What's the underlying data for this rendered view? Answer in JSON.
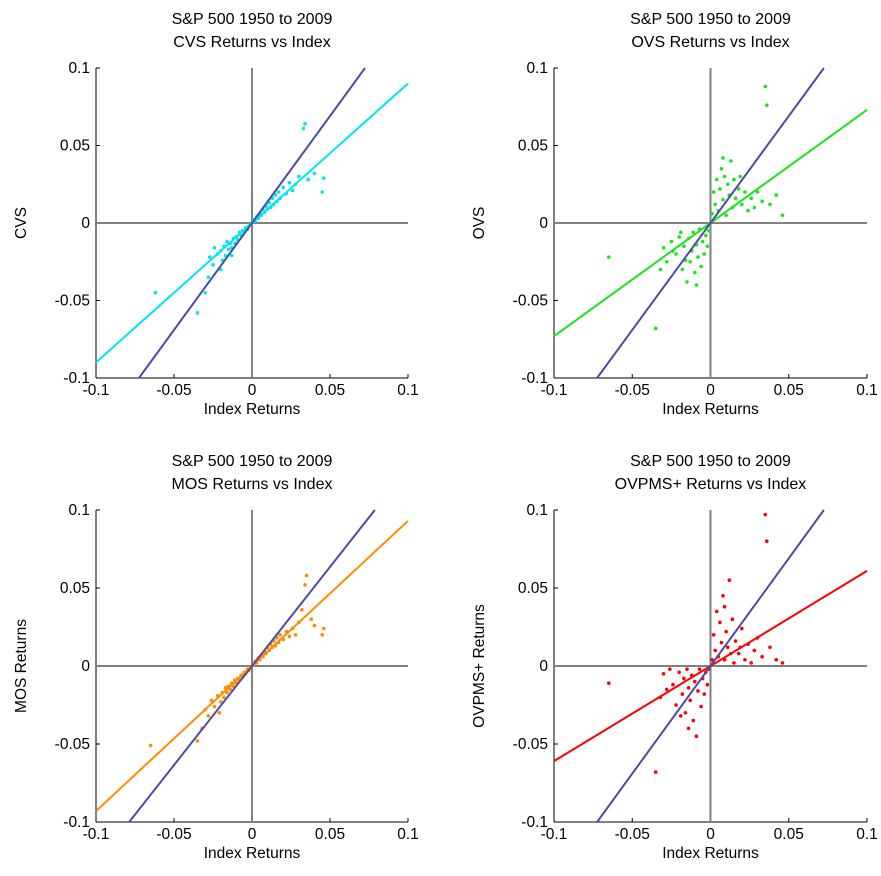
{
  "chart_data": [
    {
      "type": "scatter",
      "title_line1": "S&P 500 1950 to 2009",
      "title_line2": "CVS Returns vs Index",
      "xlabel": "Index Returns",
      "ylabel": "CVS",
      "xlim": [
        -0.1,
        0.1
      ],
      "ylim": [
        -0.1,
        0.1
      ],
      "xticks": [
        -0.1,
        -0.05,
        0,
        0.05,
        0.1
      ],
      "yticks": [
        -0.1,
        -0.05,
        0,
        0.05,
        0.1
      ],
      "xtick_labels": [
        "-0.1",
        "-0.05",
        "0",
        "0.05",
        "0.1"
      ],
      "ytick_labels": [
        "-0.1",
        "-0.05",
        "0",
        "0.05",
        "0.1"
      ],
      "color": "#00e5ee",
      "fit_slope": 0.9,
      "diag_color": "#4b4ba8",
      "diag_slope": 1.38,
      "grid": false,
      "points": [
        [
          -0.062,
          -0.045
        ],
        [
          -0.035,
          -0.058
        ],
        [
          -0.03,
          -0.045
        ],
        [
          -0.028,
          -0.035
        ],
        [
          -0.027,
          -0.022
        ],
        [
          -0.025,
          -0.027
        ],
        [
          -0.022,
          -0.02
        ],
        [
          -0.02,
          -0.018
        ],
        [
          -0.019,
          -0.024
        ],
        [
          -0.018,
          -0.015
        ],
        [
          -0.017,
          -0.021
        ],
        [
          -0.016,
          -0.012
        ],
        [
          -0.015,
          -0.017
        ],
        [
          -0.014,
          -0.013
        ],
        [
          -0.013,
          -0.016
        ],
        [
          -0.012,
          -0.01
        ],
        [
          -0.011,
          -0.013
        ],
        [
          -0.01,
          -0.009
        ],
        [
          -0.009,
          -0.011
        ],
        [
          -0.008,
          -0.006
        ],
        [
          -0.007,
          -0.008
        ],
        [
          -0.006,
          -0.005
        ],
        [
          -0.005,
          -0.006
        ],
        [
          -0.004,
          -0.003
        ],
        [
          -0.003,
          -0.004
        ],
        [
          -0.002,
          -0.002
        ],
        [
          -0.001,
          -0.001
        ],
        [
          0.001,
          0.002
        ],
        [
          0.002,
          0.001
        ],
        [
          0.003,
          0.004
        ],
        [
          0.004,
          0.003
        ],
        [
          0.005,
          0.006
        ],
        [
          0.006,
          0.005
        ],
        [
          0.007,
          0.009
        ],
        [
          0.008,
          0.007
        ],
        [
          0.009,
          0.011
        ],
        [
          0.01,
          0.009
        ],
        [
          0.011,
          0.013
        ],
        [
          0.012,
          0.01
        ],
        [
          0.013,
          0.016
        ],
        [
          0.014,
          0.012
        ],
        [
          0.015,
          0.018
        ],
        [
          0.016,
          0.014
        ],
        [
          0.017,
          0.02
        ],
        [
          0.018,
          0.016
        ],
        [
          0.02,
          0.023
        ],
        [
          0.022,
          0.019
        ],
        [
          0.024,
          0.026
        ],
        [
          0.026,
          0.021
        ],
        [
          0.028,
          0.025
        ],
        [
          0.03,
          0.03
        ],
        [
          0.033,
          0.061
        ],
        [
          0.034,
          0.064
        ],
        [
          0.036,
          0.028
        ],
        [
          0.04,
          0.032
        ],
        [
          0.045,
          0.02
        ],
        [
          0.046,
          0.029
        ],
        [
          -0.02,
          -0.03
        ],
        [
          -0.024,
          -0.016
        ],
        [
          -0.013,
          -0.021
        ]
      ]
    },
    {
      "type": "scatter",
      "title_line1": "S&P 500 1950 to 2009",
      "title_line2": "OVS Returns vs Index",
      "xlabel": "Index Returns",
      "ylabel": "OVS",
      "xlim": [
        -0.1,
        0.1
      ],
      "ylim": [
        -0.1,
        0.1
      ],
      "xticks": [
        -0.1,
        -0.05,
        0,
        0.05,
        0.1
      ],
      "yticks": [
        -0.1,
        -0.05,
        0,
        0.05,
        0.1
      ],
      "xtick_labels": [
        "-0.1",
        "-0.05",
        "0",
        "0.05",
        "0.1"
      ],
      "ytick_labels": [
        "-0.1",
        "-0.05",
        "0",
        "0.05",
        "0.1"
      ],
      "color": "#19e619",
      "fit_slope": 0.73,
      "diag_color": "#4b4ba8",
      "diag_slope": 1.38,
      "grid": false,
      "points": [
        [
          -0.065,
          -0.022
        ],
        [
          -0.035,
          -0.068
        ],
        [
          -0.032,
          -0.03
        ],
        [
          -0.03,
          -0.016
        ],
        [
          -0.028,
          -0.025
        ],
        [
          -0.025,
          -0.012
        ],
        [
          -0.022,
          -0.02
        ],
        [
          -0.02,
          -0.009
        ],
        [
          -0.018,
          -0.03
        ],
        [
          -0.017,
          -0.015
        ],
        [
          -0.015,
          -0.038
        ],
        [
          -0.014,
          -0.01
        ],
        [
          -0.013,
          -0.025
        ],
        [
          -0.012,
          -0.018
        ],
        [
          -0.011,
          -0.006
        ],
        [
          -0.01,
          -0.032
        ],
        [
          -0.009,
          -0.014
        ],
        [
          -0.008,
          -0.022
        ],
        [
          -0.007,
          -0.004
        ],
        [
          -0.006,
          -0.028
        ],
        [
          -0.005,
          -0.012
        ],
        [
          -0.004,
          -0.02
        ],
        [
          -0.003,
          -0.008
        ],
        [
          -0.002,
          -0.015
        ],
        [
          -0.001,
          -0.005
        ],
        [
          0.001,
          0.006
        ],
        [
          0.002,
          0.02
        ],
        [
          0.003,
          0.012
        ],
        [
          0.004,
          0.028
        ],
        [
          0.005,
          0.008
        ],
        [
          0.006,
          0.022
        ],
        [
          0.007,
          0.035
        ],
        [
          0.008,
          0.015
        ],
        [
          0.009,
          0.03
        ],
        [
          0.01,
          0.005
        ],
        [
          0.011,
          0.025
        ],
        [
          0.012,
          0.018
        ],
        [
          0.013,
          0.04
        ],
        [
          0.014,
          0.01
        ],
        [
          0.015,
          0.028
        ],
        [
          0.016,
          0.016
        ],
        [
          0.018,
          0.022
        ],
        [
          0.02,
          0.012
        ],
        [
          0.022,
          0.02
        ],
        [
          0.024,
          0.008
        ],
        [
          0.026,
          0.016
        ],
        [
          0.028,
          0.01
        ],
        [
          0.03,
          0.02
        ],
        [
          0.033,
          0.014
        ],
        [
          0.035,
          0.088
        ],
        [
          0.036,
          0.076
        ],
        [
          0.038,
          0.012
        ],
        [
          0.042,
          0.018
        ],
        [
          0.046,
          0.005
        ],
        [
          -0.019,
          -0.006
        ],
        [
          -0.016,
          -0.024
        ],
        [
          -0.009,
          -0.04
        ],
        [
          0.008,
          0.042
        ],
        [
          0.019,
          0.03
        ],
        [
          -0.024,
          -0.018
        ]
      ]
    },
    {
      "type": "scatter",
      "title_line1": "S&P 500 1950 to 2009",
      "title_line2": "MOS Returns vs Index",
      "xlabel": "Index Returns",
      "ylabel": "MOS Returns",
      "xlim": [
        -0.1,
        0.1
      ],
      "ylim": [
        -0.1,
        0.1
      ],
      "xticks": [
        -0.1,
        -0.05,
        0,
        0.05,
        0.1
      ],
      "yticks": [
        -0.1,
        -0.05,
        0,
        0.05,
        0.1
      ],
      "xtick_labels": [
        "-0.1",
        "-0.05",
        "0",
        "0.05",
        "0.1"
      ],
      "ytick_labels": [
        "-0.1",
        "-0.05",
        "0",
        "0.05",
        "0.1"
      ],
      "color": "#ff8c00",
      "fit_slope": 0.93,
      "diag_color": "#4b4ba8",
      "diag_slope": 1.27,
      "grid": false,
      "points": [
        [
          -0.065,
          -0.051
        ],
        [
          -0.035,
          -0.048
        ],
        [
          -0.032,
          -0.04
        ],
        [
          -0.03,
          -0.028
        ],
        [
          -0.028,
          -0.032
        ],
        [
          -0.026,
          -0.022
        ],
        [
          -0.024,
          -0.026
        ],
        [
          -0.022,
          -0.019
        ],
        [
          -0.02,
          -0.023
        ],
        [
          -0.019,
          -0.017
        ],
        [
          -0.018,
          -0.02
        ],
        [
          -0.017,
          -0.014
        ],
        [
          -0.016,
          -0.017
        ],
        [
          -0.015,
          -0.013
        ],
        [
          -0.014,
          -0.015
        ],
        [
          -0.013,
          -0.011
        ],
        [
          -0.012,
          -0.013
        ],
        [
          -0.011,
          -0.009
        ],
        [
          -0.01,
          -0.011
        ],
        [
          -0.009,
          -0.008
        ],
        [
          -0.008,
          -0.009
        ],
        [
          -0.007,
          -0.006
        ],
        [
          -0.006,
          -0.007
        ],
        [
          -0.005,
          -0.004
        ],
        [
          -0.004,
          -0.005
        ],
        [
          -0.003,
          -0.002
        ],
        [
          -0.002,
          -0.003
        ],
        [
          -0.001,
          -0.001
        ],
        [
          0.001,
          0.001
        ],
        [
          0.002,
          0.003
        ],
        [
          0.003,
          0.002
        ],
        [
          0.004,
          0.005
        ],
        [
          0.005,
          0.004
        ],
        [
          0.006,
          0.007
        ],
        [
          0.007,
          0.006
        ],
        [
          0.008,
          0.009
        ],
        [
          0.009,
          0.008
        ],
        [
          0.01,
          0.012
        ],
        [
          0.011,
          0.01
        ],
        [
          0.012,
          0.014
        ],
        [
          0.013,
          0.012
        ],
        [
          0.014,
          0.016
        ],
        [
          0.015,
          0.013
        ],
        [
          0.016,
          0.018
        ],
        [
          0.017,
          0.015
        ],
        [
          0.018,
          0.02
        ],
        [
          0.02,
          0.017
        ],
        [
          0.022,
          0.022
        ],
        [
          0.024,
          0.019
        ],
        [
          0.026,
          0.024
        ],
        [
          0.028,
          0.02
        ],
        [
          0.03,
          0.028
        ],
        [
          0.032,
          0.036
        ],
        [
          0.034,
          0.052
        ],
        [
          0.035,
          0.058
        ],
        [
          0.038,
          0.03
        ],
        [
          0.04,
          0.026
        ],
        [
          0.045,
          0.02
        ],
        [
          0.046,
          0.024
        ],
        [
          -0.021,
          -0.03
        ]
      ]
    },
    {
      "type": "scatter",
      "title_line1": "S&P 500 1950 to 2009",
      "title_line2": "OVPMS+ Returns vs Index",
      "xlabel": "Index Returns",
      "ylabel": "OVPMS+ Returns",
      "xlim": [
        -0.1,
        0.1
      ],
      "ylim": [
        -0.1,
        0.1
      ],
      "xticks": [
        -0.1,
        -0.05,
        0,
        0.05,
        0.1
      ],
      "yticks": [
        -0.1,
        -0.05,
        0,
        0.05,
        0.1
      ],
      "xtick_labels": [
        "-0.1",
        "-0.05",
        "0",
        "0.05",
        "0.1"
      ],
      "ytick_labels": [
        "-0.1",
        "-0.05",
        "0",
        "0.05",
        "0.1"
      ],
      "color": "#ff0000",
      "fit_slope": 0.61,
      "diag_color": "#4b4ba8",
      "diag_slope": 1.38,
      "grid": false,
      "points": [
        [
          -0.065,
          -0.011
        ],
        [
          -0.035,
          -0.068
        ],
        [
          -0.032,
          -0.02
        ],
        [
          -0.03,
          -0.005
        ],
        [
          -0.028,
          -0.015
        ],
        [
          -0.026,
          -0.002
        ],
        [
          -0.024,
          -0.012
        ],
        [
          -0.022,
          -0.025
        ],
        [
          -0.02,
          -0.004
        ],
        [
          -0.018,
          -0.018
        ],
        [
          -0.017,
          -0.008
        ],
        [
          -0.016,
          -0.03
        ],
        [
          -0.015,
          -0.002
        ],
        [
          -0.014,
          -0.014
        ],
        [
          -0.013,
          -0.022
        ],
        [
          -0.012,
          -0.006
        ],
        [
          -0.011,
          -0.035
        ],
        [
          -0.01,
          -0.01
        ],
        [
          -0.009,
          -0.045
        ],
        [
          -0.008,
          -0.016
        ],
        [
          -0.007,
          -0.002
        ],
        [
          -0.006,
          -0.026
        ],
        [
          -0.005,
          -0.008
        ],
        [
          -0.004,
          -0.018
        ],
        [
          -0.003,
          -0.004
        ],
        [
          -0.002,
          -0.012
        ],
        [
          -0.001,
          -0.002
        ],
        [
          0.001,
          0.004
        ],
        [
          0.002,
          0.02
        ],
        [
          0.003,
          0.01
        ],
        [
          0.004,
          0.035
        ],
        [
          0.005,
          0.006
        ],
        [
          0.006,
          0.028
        ],
        [
          0.007,
          0.015
        ],
        [
          0.008,
          0.045
        ],
        [
          0.009,
          0.004
        ],
        [
          0.01,
          0.022
        ],
        [
          0.011,
          0.012
        ],
        [
          0.012,
          0.055
        ],
        [
          0.013,
          0.008
        ],
        [
          0.014,
          0.03
        ],
        [
          0.015,
          0.002
        ],
        [
          0.016,
          0.016
        ],
        [
          0.018,
          0.008
        ],
        [
          0.02,
          0.024
        ],
        [
          0.022,
          0.004
        ],
        [
          0.024,
          0.014
        ],
        [
          0.026,
          0.002
        ],
        [
          0.028,
          0.01
        ],
        [
          0.03,
          0.018
        ],
        [
          0.033,
          0.006
        ],
        [
          0.035,
          0.097
        ],
        [
          0.036,
          0.08
        ],
        [
          0.038,
          0.012
        ],
        [
          0.042,
          0.004
        ],
        [
          0.046,
          0.002
        ],
        [
          -0.019,
          -0.032
        ],
        [
          -0.014,
          -0.04
        ],
        [
          0.009,
          0.038
        ],
        [
          0.019,
          0.012
        ]
      ]
    }
  ]
}
